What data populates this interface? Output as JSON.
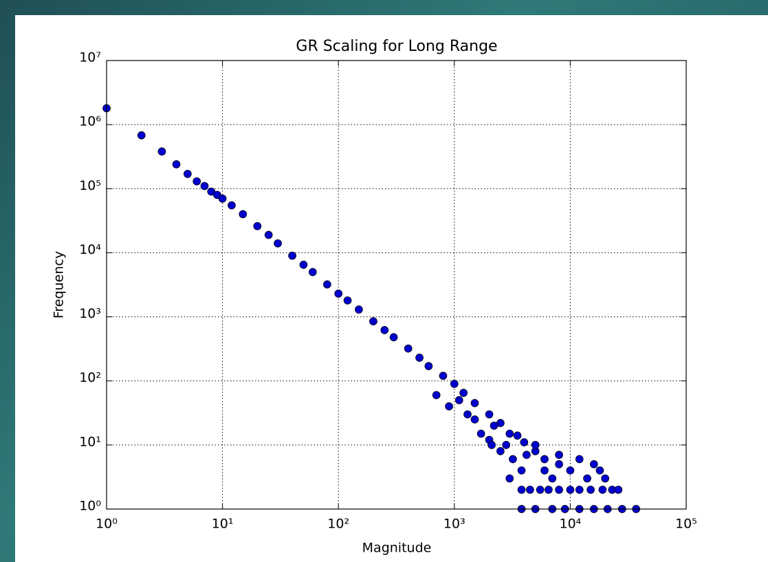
{
  "chart_data": {
    "type": "scatter",
    "title": "GR Scaling for Long Range",
    "x_label": "Magnitude",
    "y_label": "Frequency",
    "log_x": true,
    "log_y": true,
    "grid": true,
    "color": "#0000cc",
    "xlim": [
      1,
      100000
    ],
    "xticks": [
      {
        "value": 1,
        "label": "10⁰"
      },
      {
        "value": 10,
        "label": "10¹"
      },
      {
        "value": 100,
        "label": "10²"
      },
      {
        "value": 1000,
        "label": "10³"
      },
      {
        "value": 10000,
        "label": "10⁴"
      },
      {
        "value": 100000,
        "label": "10⁵"
      }
    ],
    "ylim": [
      1,
      10000000
    ],
    "yticks": [
      {
        "value": 1,
        "label": "10⁰"
      },
      {
        "value": 10,
        "label": "10¹"
      },
      {
        "value": 100,
        "label": "10²"
      },
      {
        "value": 1000,
        "label": "10³"
      },
      {
        "value": 10000,
        "label": "10⁴"
      },
      {
        "value": 100000,
        "label": "10⁵"
      },
      {
        "value": 1000000,
        "label": "10⁶"
      },
      {
        "value": 10000000,
        "label": "10⁷"
      }
    ],
    "x": [
      1,
      2,
      3,
      4,
      5,
      6,
      7,
      8,
      9,
      10,
      12,
      15,
      20,
      25,
      30,
      40,
      50,
      60,
      80,
      100,
      120,
      150,
      200,
      250,
      300,
      400,
      500,
      600,
      800,
      1000,
      1200,
      1500,
      2000,
      2500,
      3000,
      4000,
      5000,
      6000,
      8000,
      700,
      900,
      1100,
      1300,
      1500,
      1700,
      2000,
      2200,
      2500,
      2800,
      3000,
      3200,
      3500,
      3800,
      4200,
      5000,
      6000,
      7000,
      8000,
      10000,
      12000,
      14000,
      16000,
      18000,
      20000,
      2100,
      3800,
      4500,
      5500,
      6500,
      8000,
      10000,
      12000,
      15000,
      19000,
      23000,
      26000,
      3800,
      5000,
      7000,
      9000,
      12000,
      16000,
      21000,
      28000,
      37000
    ],
    "values": [
      1800000,
      680000,
      380000,
      240000,
      170000,
      130000,
      110000,
      90000,
      80000,
      70000,
      55000,
      40000,
      26000,
      19000,
      14000,
      9000,
      6500,
      5000,
      3200,
      2300,
      1800,
      1300,
      850,
      620,
      480,
      320,
      230,
      170,
      120,
      90,
      65,
      45,
      30,
      22,
      15,
      11,
      8,
      6,
      5,
      60,
      40,
      50,
      30,
      25,
      15,
      12,
      20,
      8,
      10,
      3,
      6,
      14,
      4,
      7,
      10,
      4,
      3,
      7,
      4,
      6,
      3,
      5,
      4,
      3,
      10,
      2,
      2,
      2,
      2,
      2,
      2,
      2,
      2,
      2,
      2,
      2,
      1,
      1,
      1,
      1,
      1,
      1,
      1,
      1,
      1
    ]
  }
}
